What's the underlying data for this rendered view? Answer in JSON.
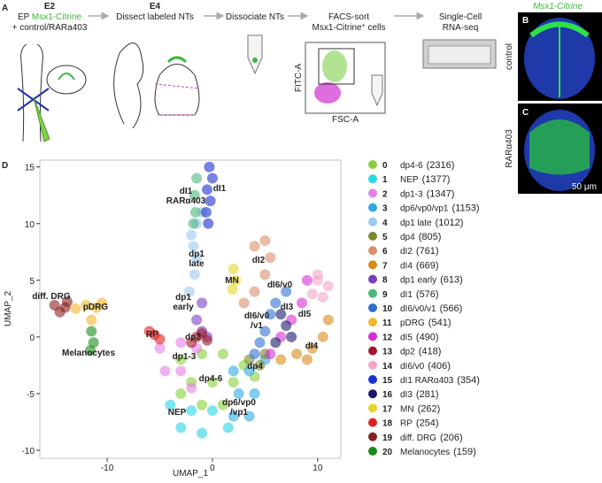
{
  "panel_a": {
    "label": "A",
    "step1": {
      "stage": "E2",
      "line1": [
        "EP ",
        "Msx1-Citrine"
      ],
      "line2": "+ control/RARa403"
    },
    "step2": {
      "stage": "E4",
      "line1": "Dissect labeled NTs"
    },
    "step3": {
      "line1": "Dissociate NTs"
    },
    "step4": {
      "line1": "FACS-sort",
      "line2": [
        "Msx1-Citrine",
        "+",
        " cells"
      ],
      "x_label": "FSC-A",
      "y_label": "FITC-A"
    },
    "step5": {
      "line1": "Single-Cell",
      "line2": "RNA-seq"
    }
  },
  "panel_bc": {
    "title": "Msx1-Citrine",
    "b_label": "B",
    "c_label": "C",
    "b_condition": "control",
    "c_condition": "RARα403",
    "scale_bar": "50 μm"
  },
  "chart_data": {
    "type": "scatter",
    "label": "D",
    "x_label": "UMAP_1",
    "y_label": "UMAP_2",
    "xlim": [
      -16.4,
      12.2
    ],
    "ylim": [
      -10.7,
      15.6
    ],
    "xticks": [
      -10,
      0,
      10
    ],
    "yticks": [
      -10,
      -5,
      0,
      5,
      10,
      15
    ],
    "annotations": [
      [
        "dI1",
        "RARα403"
      ],
      [
        "dI1"
      ],
      [
        "dp1",
        "late"
      ],
      [
        "dI2"
      ],
      [
        "MN"
      ],
      [
        "dp1",
        "early"
      ],
      [
        "dI6/v0"
      ],
      [
        "dI3"
      ],
      [
        "dI6/v0",
        "/v1"
      ],
      [
        "dI5"
      ],
      [
        "diff. DRG"
      ],
      [
        "pDRG"
      ],
      [
        "Melanocytes"
      ],
      [
        "RP"
      ],
      [
        "dp2"
      ],
      [
        "dp1-3"
      ],
      [
        "dp4"
      ],
      [
        "dI4"
      ],
      [
        "dp4-6"
      ],
      [
        "NEP"
      ],
      [
        "dp6/vp0",
        "/vp1"
      ]
    ],
    "series": [
      {
        "id": "0",
        "name": "dp4-6",
        "count": "(2316)",
        "color": "#8bd03b",
        "x": [
          -3,
          -1,
          1,
          3,
          -2,
          0,
          2,
          4,
          -1,
          1,
          -3
        ],
        "y": [
          -2,
          -1.5,
          -1.5,
          -2.5,
          -4,
          -4,
          -4,
          -3.5,
          -6,
          -6,
          -5
        ]
      },
      {
        "id": "1",
        "name": "NEP",
        "count": "(1377)",
        "color": "#29d6e6",
        "x": [
          -4,
          -2,
          0,
          -3,
          -1,
          1.5
        ],
        "y": [
          -6,
          -6.5,
          -6.5,
          -8,
          -8.5,
          -8
        ]
      },
      {
        "id": "2",
        "name": "dp1-3",
        "count": "(1347)",
        "color": "#e87fe8",
        "x": [
          -5,
          -3,
          -1.5,
          -4.5,
          -3,
          -2
        ],
        "y": [
          -1,
          -0.5,
          -1,
          -3,
          -3,
          -4.5
        ]
      },
      {
        "id": "3",
        "name": "dp6/vp0/vp1",
        "count": "(1153)",
        "color": "#2fa8e8",
        "x": [
          2,
          3.5,
          5,
          2.5,
          4,
          3.5,
          2
        ],
        "y": [
          -3,
          -3,
          -2,
          -5,
          -5,
          -7,
          -7
        ]
      },
      {
        "id": "4",
        "name": "dp1 late",
        "count": "(1012)",
        "color": "#9cc9ee",
        "x": [
          -1,
          -1.5,
          -2,
          -1.8,
          -1.5,
          -1.7,
          -2.2
        ],
        "y": [
          11,
          10,
          9,
          8,
          7,
          5.5,
          4
        ]
      },
      {
        "id": "5",
        "name": "dp4",
        "count": "(805)",
        "color": "#7a8c2e",
        "x": [
          3.5,
          4.5,
          5
        ],
        "y": [
          -2,
          -2.5,
          -1.5
        ]
      },
      {
        "id": "6",
        "name": "dI2",
        "count": "(761)",
        "color": "#d9906a",
        "x": [
          3,
          4,
          5,
          5.5,
          5,
          4
        ],
        "y": [
          3,
          4,
          5.5,
          7,
          8.5,
          8
        ]
      },
      {
        "id": "7",
        "name": "dI4",
        "count": "(669)",
        "color": "#d98a1a",
        "x": [
          6.5,
          8,
          9.5,
          10.5,
          11,
          9
        ],
        "y": [
          -2,
          -1.5,
          -1,
          0,
          1.5,
          -2
        ]
      },
      {
        "id": "8",
        "name": "dp1 early",
        "count": "(613)",
        "color": "#7b3fbf",
        "x": [
          -1,
          -1.5,
          -1,
          -0.5
        ],
        "y": [
          3,
          1.5,
          0.5,
          0
        ]
      },
      {
        "id": "9",
        "name": "dI1",
        "count": "(576)",
        "color": "#4cb87a",
        "x": [
          -1.5,
          -1.7,
          -1.6,
          -1.8
        ],
        "y": [
          14,
          12.5,
          11,
          10
        ]
      },
      {
        "id": "10",
        "name": "dI6/v0/v1",
        "count": "(566)",
        "color": "#2f6fd0",
        "x": [
          7,
          6,
          5.5,
          5,
          4.5,
          4
        ],
        "y": [
          4,
          3,
          2,
          0.5,
          -0.5,
          -1.5
        ]
      },
      {
        "id": "11",
        "name": "pDRG",
        "count": "(541)",
        "color": "#f2b62a",
        "x": [
          -13,
          -12,
          -11,
          -10.5,
          -11.5
        ],
        "y": [
          2.5,
          2.8,
          2.6,
          3,
          1.5
        ]
      },
      {
        "id": "12",
        "name": "dI5",
        "count": "(490)",
        "color": "#d42fd4",
        "x": [
          9,
          8.5,
          7.5,
          6.5,
          5.5
        ],
        "y": [
          5,
          3,
          1.5,
          0,
          -1.5
        ]
      },
      {
        "id": "13",
        "name": "dp2",
        "count": "(418)",
        "color": "#a01a2a",
        "x": [
          -1.5,
          -0.5,
          -2,
          -1
        ],
        "y": [
          0,
          -0.3,
          -0.5,
          0.3
        ]
      },
      {
        "id": "14",
        "name": "dI6/v0",
        "count": "(406)",
        "color": "#f2a6c6",
        "x": [
          10,
          11,
          10.5,
          9.5,
          10
        ],
        "y": [
          5.5,
          4.5,
          3.5,
          3.8,
          5
        ]
      },
      {
        "id": "15",
        "name": "dI1 RARα403",
        "count": "(354)",
        "color": "#1a2fd0",
        "x": [
          -0.3,
          0,
          -0.5,
          -0.2,
          -0.6,
          -0.4
        ],
        "y": [
          15,
          14,
          13,
          12,
          11,
          10
        ]
      },
      {
        "id": "16",
        "name": "dI3",
        "count": "(281)",
        "color": "#1a1a6a",
        "x": [
          6.5,
          7,
          7.5,
          6
        ],
        "y": [
          2,
          1,
          0,
          -0.5
        ]
      },
      {
        "id": "17",
        "name": "MN",
        "count": "(262)",
        "color": "#e6d62a",
        "x": [
          2,
          2.2,
          1.9
        ],
        "y": [
          6,
          5,
          4.2
        ]
      },
      {
        "id": "18",
        "name": "RP",
        "count": "(254)",
        "color": "#e02020",
        "x": [
          -6,
          -5.5,
          -5
        ],
        "y": [
          0.5,
          0.2,
          -0.2
        ]
      },
      {
        "id": "19",
        "name": "diff. DRG",
        "count": "(206)",
        "color": "#8a2020",
        "x": [
          -15,
          -14.5,
          -14,
          -13.8
        ],
        "y": [
          2.8,
          2.2,
          2.6,
          3.1
        ]
      },
      {
        "id": "20",
        "name": "Melanocytes",
        "count": "(159)",
        "color": "#1a8a1a",
        "x": [
          -11.5,
          -11.3,
          -11.6
        ],
        "y": [
          0.5,
          -0.5,
          -1.2
        ]
      }
    ]
  }
}
